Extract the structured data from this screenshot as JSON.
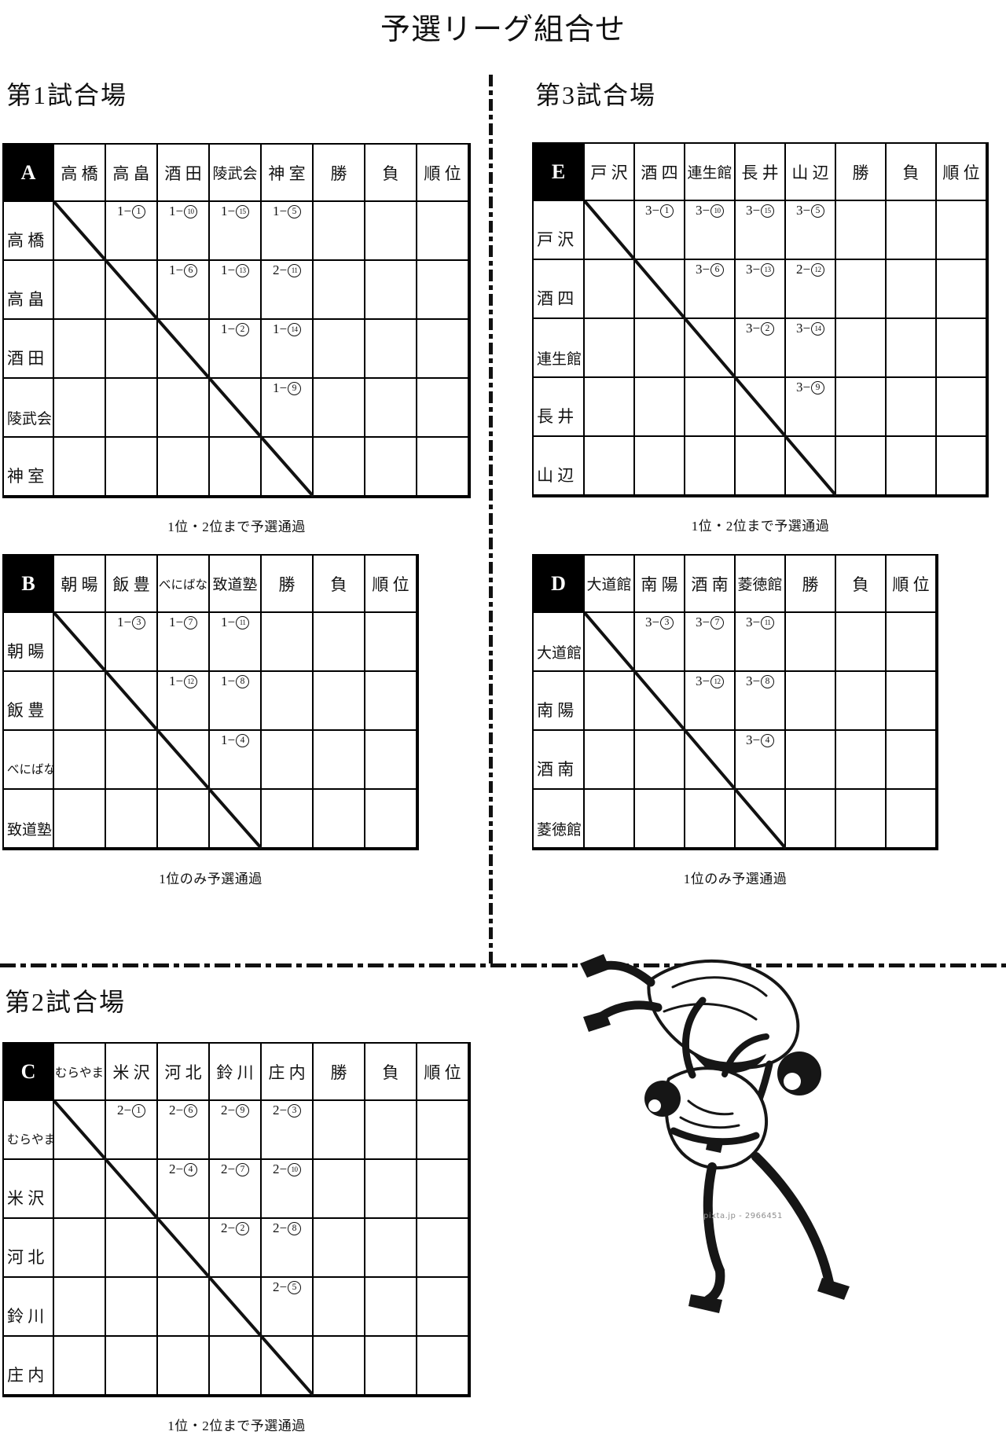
{
  "page": {
    "title": "予選リーグ組合せ",
    "watermark": "pixta.jp - 2966451"
  },
  "venues": {
    "v1": "第1試合場",
    "v2": "第2試合場",
    "v3": "第3試合場"
  },
  "headers": {
    "win": "勝",
    "loss": "負",
    "rank": "順 位"
  },
  "notes": {
    "top2": "1位・2位まで予選通過",
    "top1": "1位のみ予選通過"
  },
  "tables": [
    {
      "id": "A",
      "venue": "第1試合場",
      "teams": [
        "高 橋",
        "高 畠",
        "酒 田",
        "陵武会",
        "神 室"
      ],
      "matches": [
        [
          "",
          "1-1",
          "1-10",
          "1-15",
          "1-5"
        ],
        [
          "",
          "",
          "1-6",
          "1-13",
          "2-11"
        ],
        [
          "",
          "",
          "",
          "1-2",
          "1-14"
        ],
        [
          "",
          "",
          "",
          "",
          "1-9"
        ],
        [
          "",
          "",
          "",
          "",
          ""
        ]
      ],
      "note": "top2"
    },
    {
      "id": "B",
      "venue": "第1試合場",
      "teams": [
        "朝 暘",
        "飯 豊",
        "べにばな",
        "致道塾"
      ],
      "matches": [
        [
          "",
          "1-3",
          "1-7",
          "1-11"
        ],
        [
          "",
          "",
          "1-12",
          "1-8"
        ],
        [
          "",
          "",
          "",
          "1-4"
        ],
        [
          "",
          "",
          "",
          ""
        ]
      ],
      "note": "top1"
    },
    {
      "id": "C",
      "venue": "第2試合場",
      "teams": [
        "むらやま",
        "米 沢",
        "河 北",
        "鈴 川",
        "庄 内"
      ],
      "matches": [
        [
          "",
          "2-1",
          "2-6",
          "2-9",
          "2-3"
        ],
        [
          "",
          "",
          "2-4",
          "2-7",
          "2-10"
        ],
        [
          "",
          "",
          "",
          "2-2",
          "2-8"
        ],
        [
          "",
          "",
          "",
          "",
          "2-5"
        ],
        [
          "",
          "",
          "",
          "",
          ""
        ]
      ],
      "note": "top2"
    },
    {
      "id": "D",
      "venue": "第3試合場",
      "teams": [
        "大道館",
        "南 陽",
        "酒 南",
        "菱徳館"
      ],
      "matches": [
        [
          "",
          "3-3",
          "3-7",
          "3-11"
        ],
        [
          "",
          "",
          "3-12",
          "3-8"
        ],
        [
          "",
          "",
          "",
          "3-4"
        ],
        [
          "",
          "",
          "",
          ""
        ]
      ],
      "note": "top1"
    },
    {
      "id": "E",
      "venue": "第3試合場",
      "teams": [
        "戸 沢",
        "酒 四",
        "連生館",
        "長 井",
        "山 辺"
      ],
      "matches": [
        [
          "",
          "3-1",
          "3-10",
          "3-15",
          "3-5"
        ],
        [
          "",
          "",
          "3-6",
          "3-13",
          "2-12"
        ],
        [
          "",
          "",
          "",
          "3-2",
          "3-14"
        ],
        [
          "",
          "",
          "",
          "",
          "3-9"
        ],
        [
          "",
          "",
          "",
          "",
          ""
        ]
      ],
      "note": "top2"
    }
  ]
}
